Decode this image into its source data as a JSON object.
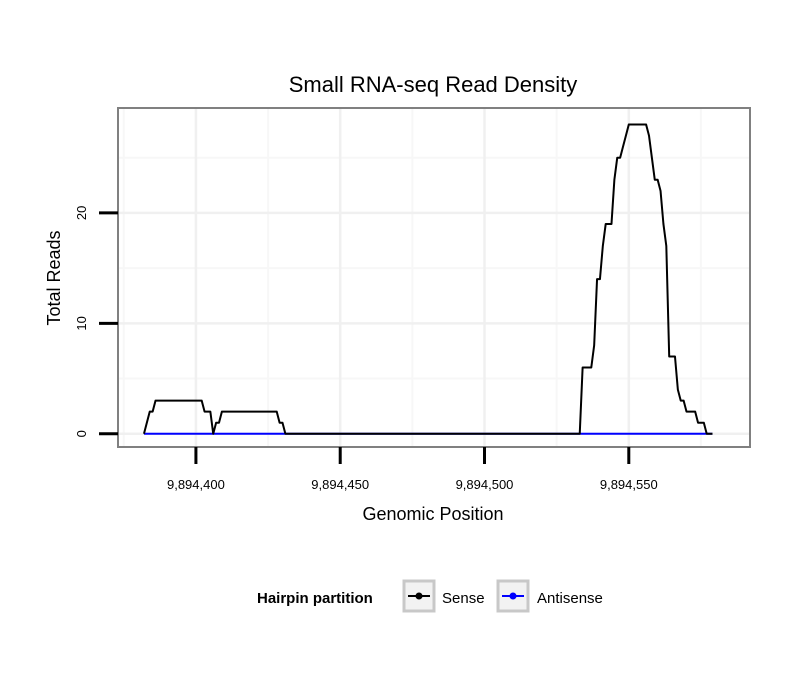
{
  "chart_data": {
    "type": "line",
    "title": "Small RNA-seq Read Density",
    "xlabel": "Genomic Position",
    "ylabel": "Total Reads",
    "xlim": [
      9894373,
      9894592
    ],
    "ylim": [
      -1.2,
      29.5
    ],
    "x_ticks": [
      9894400,
      9894450,
      9894500,
      9894550
    ],
    "x_tick_labels": [
      "9,894,400",
      "9,894,450",
      "9,894,500",
      "9,894,550"
    ],
    "y_ticks": [
      0,
      10,
      20
    ],
    "y_tick_labels": [
      "0",
      "10",
      "20"
    ],
    "grid": true,
    "legend": {
      "title": "Hairpin partition",
      "position": "bottom",
      "entries": [
        {
          "label": "Sense",
          "color": "#000000"
        },
        {
          "label": "Antisense",
          "color": "#0000ff"
        }
      ]
    },
    "series": [
      {
        "name": "Sense",
        "color": "#000000",
        "points": [
          [
            9894382,
            0
          ],
          [
            9894384,
            2
          ],
          [
            9894385,
            2
          ],
          [
            9894386,
            3
          ],
          [
            9894402,
            3
          ],
          [
            9894403,
            2
          ],
          [
            9894405,
            2
          ],
          [
            9894406,
            0
          ],
          [
            9894407,
            1
          ],
          [
            9894408,
            1
          ],
          [
            9894409,
            2
          ],
          [
            9894428,
            2
          ],
          [
            9894429,
            1
          ],
          [
            9894430,
            1
          ],
          [
            9894431,
            0
          ],
          [
            9894533,
            0
          ],
          [
            9894534,
            6
          ],
          [
            9894537,
            6
          ],
          [
            9894538,
            8
          ],
          [
            9894539,
            14
          ],
          [
            9894540,
            14
          ],
          [
            9894541,
            17
          ],
          [
            9894542,
            19
          ],
          [
            9894544,
            19
          ],
          [
            9894545,
            23
          ],
          [
            9894546,
            25
          ],
          [
            9894547,
            25
          ],
          [
            9894548,
            26
          ],
          [
            9894549,
            27
          ],
          [
            9894550,
            28
          ],
          [
            9894556,
            28
          ],
          [
            9894557,
            27
          ],
          [
            9894558,
            25
          ],
          [
            9894559,
            23
          ],
          [
            9894560,
            23
          ],
          [
            9894561,
            22
          ],
          [
            9894562,
            19
          ],
          [
            9894563,
            17
          ],
          [
            9894564,
            7
          ],
          [
            9894566,
            7
          ],
          [
            9894567,
            4
          ],
          [
            9894568,
            3
          ],
          [
            9894569,
            3
          ],
          [
            9894570,
            2
          ],
          [
            9894573,
            2
          ],
          [
            9894574,
            1
          ],
          [
            9894576,
            1
          ],
          [
            9894577,
            0
          ],
          [
            9894579,
            0
          ]
        ]
      },
      {
        "name": "Antisense",
        "color": "#0000ff",
        "points": [
          [
            9894382,
            0
          ],
          [
            9894579,
            0
          ]
        ]
      }
    ]
  }
}
